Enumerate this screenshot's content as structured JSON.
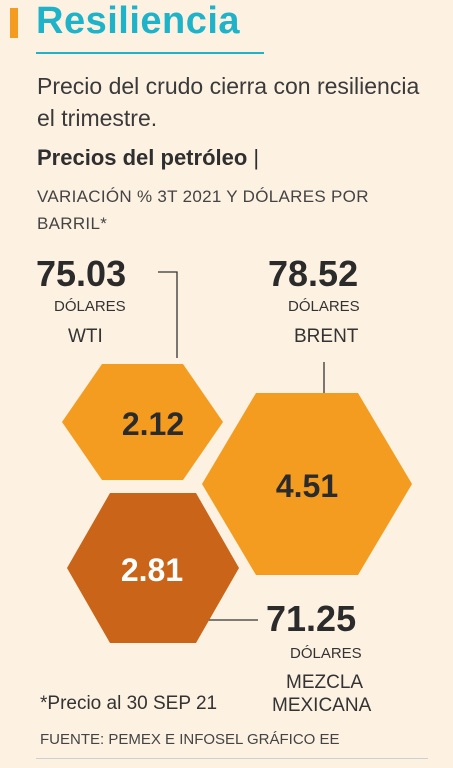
{
  "header": {
    "title": "Resiliencia",
    "subtitle": "Precio del crudo cierra con resiliencia el trimestre."
  },
  "chart_data": {
    "type": "bubble",
    "title": "Precios del petróleo",
    "title_separator": "|",
    "subtitle": "VARIACIÓN % 3T 2021 Y DÓLARES POR BARRIL*",
    "series": [
      {
        "name": "WTI",
        "price": "75.03",
        "unit": "DÓLARES",
        "variation": "2.12",
        "color": "#f39c1f"
      },
      {
        "name": "BRENT",
        "price": "78.52",
        "unit": "DÓLARES",
        "variation": "4.51",
        "color": "#f39c1f"
      },
      {
        "name": "MEZCLA MEXICANA",
        "name_line1": "MEZCLA",
        "name_line2": "MEXICANA",
        "price": "71.25",
        "unit": "DÓLARES",
        "variation": "2.81",
        "color": "#c96419"
      }
    ]
  },
  "footer": {
    "note": "*Precio al 30 SEP 21",
    "source": "FUENTE: PEMEX E INFOSEL GRÁFICO EE"
  }
}
